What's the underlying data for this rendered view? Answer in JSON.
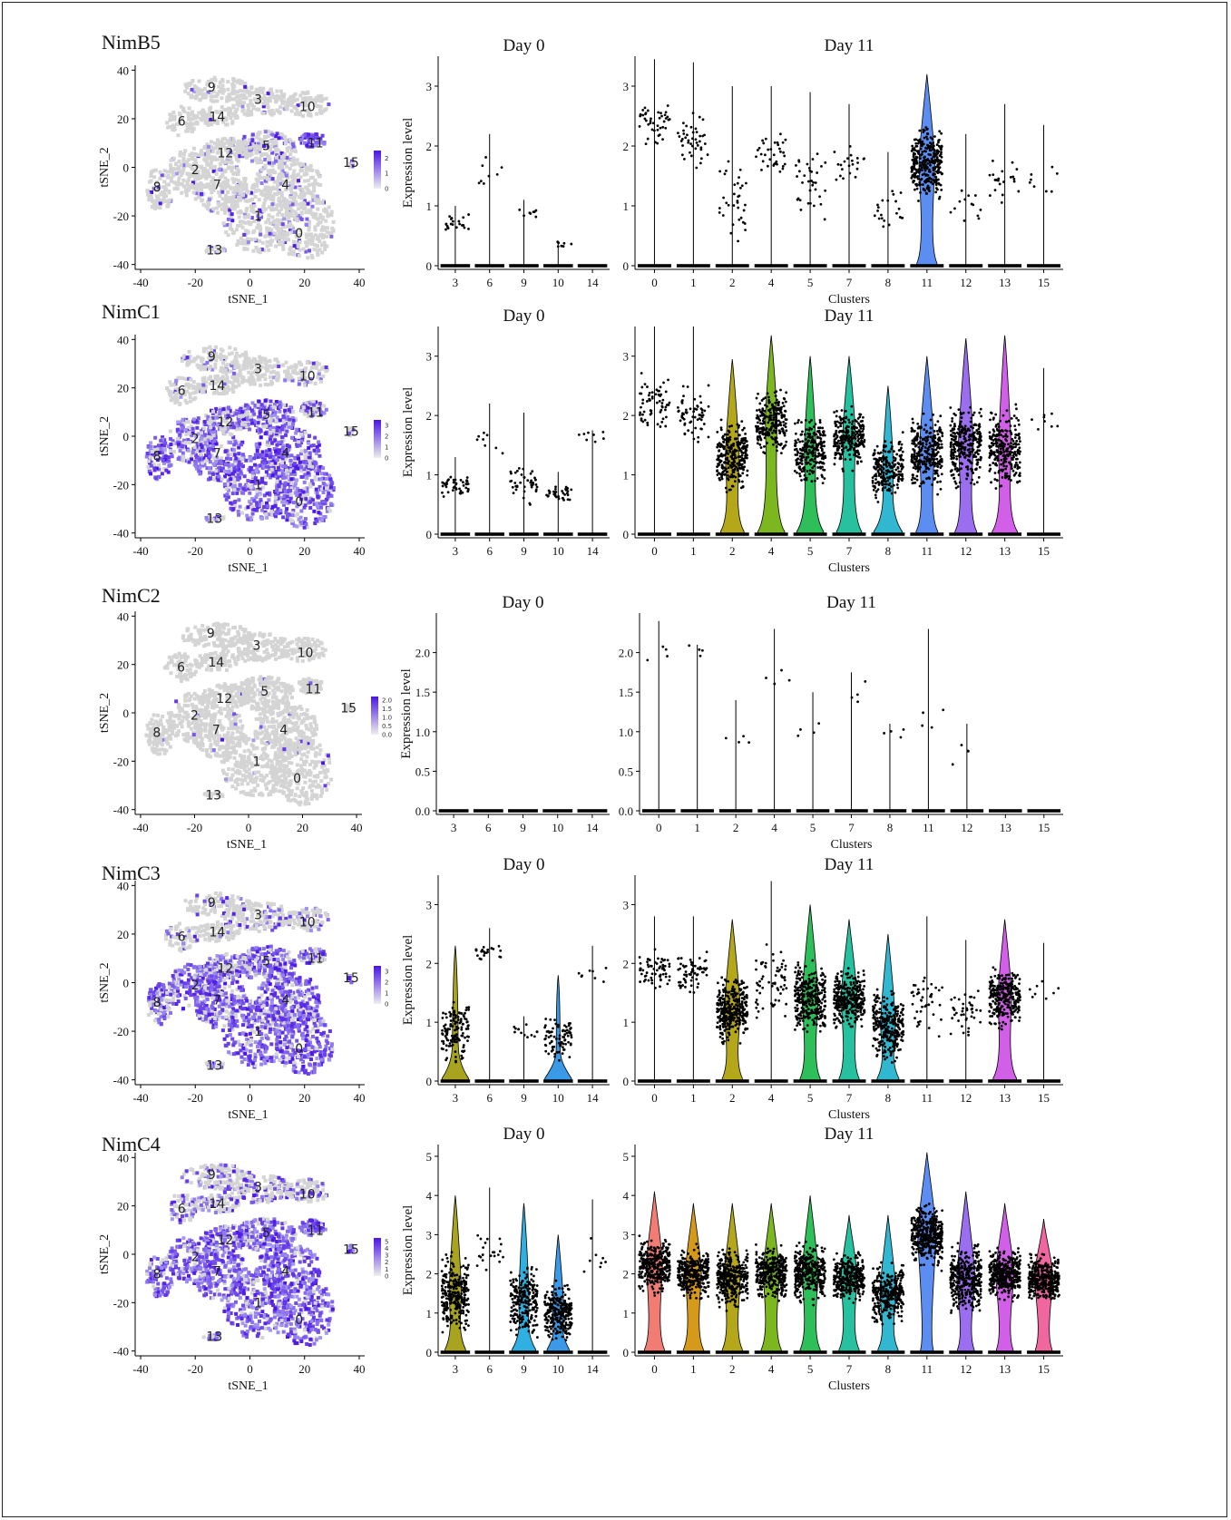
{
  "tsne_axis": {
    "xlabel": "tSNE_1",
    "ylabel": "tSNE_2",
    "xticks": [
      -40,
      -20,
      0,
      20,
      40
    ],
    "yticks": [
      40,
      20,
      0,
      -20,
      -40
    ],
    "xlim": [
      -42,
      42
    ],
    "ylim": [
      -42,
      42
    ]
  },
  "cluster_labels": [
    "0",
    "1",
    "2",
    "3",
    "4",
    "5",
    "6",
    "7",
    "8",
    "9",
    "10",
    "11",
    "12",
    "13",
    "14",
    "15"
  ],
  "violin_common": {
    "ylabel": "Expression level",
    "xlabel_day11": "Clusters",
    "title_day0": "Day 0",
    "title_day11": "Day 11",
    "day0_clusters": [
      "3",
      "6",
      "9",
      "10",
      "14"
    ],
    "day11_clusters_full": [
      "0",
      "1",
      "2",
      "4",
      "5",
      "7",
      "8",
      "11",
      "12",
      "13",
      "15"
    ]
  },
  "colors": {
    "tsne_low": "#d4d4d4",
    "tsne_high": "#4a14e6",
    "cluster_colors": {
      "0": "#f07c74",
      "1": "#d59a1a",
      "2": "#b5a71a",
      "3": "#a8a41f",
      "4": "#7cb71f",
      "5": "#2fbf5a",
      "6": "#1fbf8f",
      "7": "#27c1a0",
      "8": "#31b8d0",
      "9": "#2fb0e0",
      "10": "#3b9ae8",
      "11": "#5b8ef0",
      "12": "#9b6ef0",
      "13": "#d25fe8",
      "14": "#e85cc8",
      "15": "#f067a0"
    }
  },
  "chart_data": [
    {
      "type": "scatter",
      "gene": "NimB5",
      "legend_ticks": [
        "2",
        "1",
        "0"
      ],
      "legend_max": 2.5,
      "expression_fraction_by_cluster": {
        "0": 0.12,
        "1": 0.12,
        "2": 0.1,
        "3": 0.02,
        "4": 0.12,
        "5": 0.25,
        "6": 0.0,
        "7": 0.1,
        "8": 0.05,
        "9": 0.02,
        "10": 0.02,
        "11": 0.85,
        "12": 0.15,
        "13": 0.15,
        "14": 0.02,
        "15": 0.5
      },
      "violin_day0": {
        "ylim": [
          0,
          3.5
        ],
        "yticks": [
          0,
          1,
          2,
          3
        ],
        "max_by_cluster": {
          "3": 1.0,
          "6": 2.2,
          "9": 1.1,
          "10": 0.4,
          "14": 0.0
        },
        "expressed_fraction": {
          "3": 0.05,
          "6": 0.02,
          "9": 0.02,
          "10": 0.02,
          "14": 0.0
        },
        "median_expressed": {
          "3": 0.7,
          "6": 1.5,
          "9": 0.9,
          "10": 0.4,
          "14": 0.0
        }
      },
      "violin_day11": {
        "clusters": [
          "0",
          "1",
          "2",
          "4",
          "5",
          "7",
          "8",
          "11",
          "12",
          "13",
          "15"
        ],
        "ylim": [
          0,
          3.5
        ],
        "yticks": [
          0,
          1,
          2,
          3
        ],
        "max_by_cluster": {
          "0": 3.45,
          "1": 3.4,
          "2": 3.0,
          "4": 3.0,
          "5": 2.9,
          "7": 2.7,
          "8": 1.9,
          "11": 3.2,
          "12": 2.2,
          "13": 2.7,
          "15": 2.35
        },
        "expressed_fraction": {
          "0": 0.1,
          "1": 0.1,
          "2": 0.08,
          "4": 0.08,
          "5": 0.08,
          "7": 0.05,
          "8": 0.05,
          "11": 0.75,
          "12": 0.03,
          "13": 0.05,
          "15": 0.02
        },
        "median_expressed": {
          "0": 2.4,
          "1": 2.1,
          "2": 1.1,
          "4": 1.9,
          "5": 1.3,
          "7": 1.7,
          "8": 0.9,
          "11": 1.7,
          "12": 1.1,
          "13": 1.5,
          "15": 1.4
        }
      }
    },
    {
      "type": "scatter",
      "gene": "NimC1",
      "legend_ticks": [
        "3",
        "2",
        "1",
        "0"
      ],
      "legend_max": 3.5,
      "expression_fraction_by_cluster": {
        "0": 0.85,
        "1": 0.85,
        "2": 0.75,
        "3": 0.1,
        "4": 0.8,
        "5": 0.7,
        "6": 0.05,
        "7": 0.8,
        "8": 0.7,
        "9": 0.1,
        "10": 0.1,
        "11": 0.6,
        "12": 0.6,
        "13": 0.5,
        "14": 0.08,
        "15": 0.5
      },
      "violin_day0": {
        "ylim": [
          0,
          3.5
        ],
        "yticks": [
          0,
          1,
          2,
          3
        ],
        "max_by_cluster": {
          "3": 1.3,
          "6": 2.2,
          "9": 2.05,
          "10": 1.05,
          "14": 1.75
        },
        "expressed_fraction": {
          "3": 0.1,
          "6": 0.02,
          "9": 0.1,
          "10": 0.08,
          "14": 0.02
        },
        "median_expressed": {
          "3": 0.8,
          "6": 1.5,
          "9": 0.9,
          "10": 0.7,
          "14": 1.7
        }
      },
      "violin_day11": {
        "clusters": [
          "0",
          "1",
          "2",
          "4",
          "5",
          "7",
          "8",
          "11",
          "12",
          "13",
          "15"
        ],
        "ylim": [
          0,
          3.5
        ],
        "yticks": [
          0,
          1,
          2,
          3
        ],
        "max_by_cluster": {
          "0": 3.5,
          "1": 3.5,
          "2": 2.95,
          "4": 3.35,
          "5": 3.0,
          "7": 3.0,
          "8": 2.5,
          "11": 3.0,
          "12": 3.3,
          "13": 3.35,
          "15": 2.8
        },
        "expressed_fraction": {
          "0": 0.15,
          "1": 0.15,
          "2": 0.65,
          "4": 0.55,
          "5": 0.55,
          "7": 0.6,
          "8": 0.5,
          "11": 0.7,
          "12": 0.7,
          "13": 0.6,
          "15": 0.02
        },
        "median_expressed": {
          "0": 2.2,
          "1": 2.0,
          "2": 1.3,
          "4": 1.9,
          "5": 1.4,
          "7": 1.6,
          "8": 1.1,
          "11": 1.4,
          "12": 1.5,
          "13": 1.4,
          "15": 1.9
        }
      }
    },
    {
      "type": "scatter",
      "gene": "NimC2",
      "legend_ticks": [
        "2.0",
        "1.5",
        "1.0",
        "0.5",
        "0.0"
      ],
      "legend_max": 2.2,
      "expression_fraction_by_cluster": {
        "0": 0.02,
        "1": 0.02,
        "2": 0.02,
        "3": 0.0,
        "4": 0.02,
        "5": 0.02,
        "6": 0.0,
        "7": 0.02,
        "8": 0.02,
        "9": 0.0,
        "10": 0.0,
        "11": 0.02,
        "12": 0.02,
        "13": 0.0,
        "14": 0.0,
        "15": 0.0
      },
      "violin_day0": {
        "ylim": [
          0,
          2.5
        ],
        "yticks": [
          0.0,
          0.5,
          1.0,
          1.5,
          2.0
        ],
        "max_by_cluster": {
          "3": 0,
          "6": 0,
          "9": 0,
          "10": 0,
          "14": 0
        },
        "expressed_fraction": {
          "3": 0,
          "6": 0,
          "9": 0,
          "10": 0,
          "14": 0
        },
        "median_expressed": {
          "3": 0,
          "6": 0,
          "9": 0,
          "10": 0,
          "14": 0
        }
      },
      "violin_day11": {
        "clusters": [
          "0",
          "1",
          "2",
          "4",
          "5",
          "7",
          "8",
          "11",
          "12",
          "13",
          "15"
        ],
        "ylim": [
          0,
          2.5
        ],
        "yticks": [
          0.0,
          0.5,
          1.0,
          1.5,
          2.0
        ],
        "max_by_cluster": {
          "0": 2.4,
          "1": 2.1,
          "2": 1.4,
          "4": 2.3,
          "5": 1.5,
          "7": 1.75,
          "8": 1.1,
          "11": 2.3,
          "12": 1.1,
          "13": 0,
          "15": 0
        },
        "expressed_fraction": {
          "0": 0.01,
          "1": 0.01,
          "2": 0.01,
          "4": 0.01,
          "5": 0.01,
          "7": 0.01,
          "8": 0.01,
          "11": 0.01,
          "12": 0.01,
          "13": 0,
          "15": 0
        },
        "median_expressed": {
          "0": 2.0,
          "1": 2.05,
          "2": 1.0,
          "4": 1.7,
          "5": 1.0,
          "7": 1.5,
          "8": 1.0,
          "11": 1.1,
          "12": 0.75,
          "13": 0,
          "15": 0
        }
      }
    },
    {
      "type": "scatter",
      "gene": "NimC3",
      "legend_ticks": [
        "3",
        "2",
        "1",
        "0"
      ],
      "legend_max": 3.5,
      "expression_fraction_by_cluster": {
        "0": 0.85,
        "1": 0.8,
        "2": 0.75,
        "3": 0.25,
        "4": 0.8,
        "5": 0.8,
        "6": 0.2,
        "7": 0.75,
        "8": 0.7,
        "9": 0.1,
        "10": 0.2,
        "11": 0.5,
        "12": 0.55,
        "13": 0.6,
        "14": 0.05,
        "15": 0.5
      },
      "violin_day0": {
        "ylim": [
          0,
          3.5
        ],
        "yticks": [
          0,
          1,
          2,
          3
        ],
        "max_by_cluster": {
          "3": 2.3,
          "6": 2.6,
          "9": 1.1,
          "10": 1.8,
          "14": 2.3
        },
        "expressed_fraction": {
          "3": 0.3,
          "6": 0.05,
          "9": 0.03,
          "10": 0.2,
          "14": 0.02
        },
        "median_expressed": {
          "3": 0.85,
          "6": 2.2,
          "9": 0.8,
          "10": 0.7,
          "14": 1.8
        }
      },
      "violin_day11": {
        "clusters": [
          "0",
          "1",
          "2",
          "4",
          "5",
          "7",
          "8",
          "11",
          "12",
          "13",
          "15"
        ],
        "ylim": [
          0,
          3.5
        ],
        "yticks": [
          0,
          1,
          2,
          3
        ],
        "max_by_cluster": {
          "0": 2.8,
          "1": 2.8,
          "2": 2.75,
          "4": 3.4,
          "5": 3.0,
          "7": 2.75,
          "8": 2.5,
          "11": 2.8,
          "12": 2.4,
          "13": 2.75,
          "15": 2.35
        },
        "expressed_fraction": {
          "0": 0.15,
          "1": 0.15,
          "2": 0.75,
          "4": 0.15,
          "5": 0.75,
          "7": 0.75,
          "8": 0.7,
          "11": 0.1,
          "12": 0.1,
          "13": 0.65,
          "15": 0.02
        },
        "median_expressed": {
          "0": 1.9,
          "1": 1.8,
          "2": 1.2,
          "4": 1.6,
          "5": 1.4,
          "7": 1.4,
          "8": 0.95,
          "11": 1.3,
          "12": 1.2,
          "13": 1.4,
          "15": 1.6
        }
      }
    },
    {
      "type": "scatter",
      "gene": "NimC4",
      "legend_ticks": [
        "5",
        "4",
        "3",
        "2",
        "1",
        "0"
      ],
      "legend_max": 5.5,
      "expression_fraction_by_cluster": {
        "0": 0.9,
        "1": 0.85,
        "2": 0.85,
        "3": 0.4,
        "4": 0.85,
        "5": 0.85,
        "6": 0.4,
        "7": 0.85,
        "8": 0.8,
        "9": 0.3,
        "10": 0.3,
        "11": 0.95,
        "12": 0.8,
        "13": 0.7,
        "14": 0.3,
        "15": 0.7
      },
      "violin_day0": {
        "ylim": [
          0,
          5.3
        ],
        "yticks": [
          0,
          1,
          2,
          3,
          4,
          5
        ],
        "max_by_cluster": {
          "3": 4.0,
          "6": 4.2,
          "9": 3.8,
          "10": 3.0,
          "14": 3.9
        },
        "expressed_fraction": {
          "3": 0.65,
          "6": 0.05,
          "9": 0.55,
          "10": 0.6,
          "14": 0.02
        },
        "median_expressed": {
          "3": 1.5,
          "6": 2.6,
          "9": 1.3,
          "10": 1.0,
          "14": 2.3
        }
      },
      "violin_day11": {
        "clusters": [
          "0",
          "1",
          "2",
          "4",
          "5",
          "7",
          "8",
          "11",
          "12",
          "13",
          "15"
        ],
        "ylim": [
          0,
          5.3
        ],
        "yticks": [
          0,
          1,
          2,
          3,
          4,
          5
        ],
        "max_by_cluster": {
          "0": 4.1,
          "1": 3.8,
          "2": 3.8,
          "4": 3.8,
          "5": 4.0,
          "7": 3.5,
          "8": 3.5,
          "11": 5.1,
          "12": 4.1,
          "13": 3.8,
          "15": 3.4
        },
        "expressed_fraction": {
          "0": 0.75,
          "1": 0.75,
          "2": 0.75,
          "4": 0.75,
          "5": 0.75,
          "7": 0.75,
          "8": 0.75,
          "11": 0.97,
          "12": 0.85,
          "13": 0.85,
          "15": 0.85
        },
        "median_expressed": {
          "0": 2.2,
          "1": 2.0,
          "2": 1.9,
          "4": 2.0,
          "5": 2.0,
          "7": 1.9,
          "8": 1.5,
          "11": 3.0,
          "12": 1.9,
          "13": 2.0,
          "15": 1.9
        }
      }
    }
  ]
}
